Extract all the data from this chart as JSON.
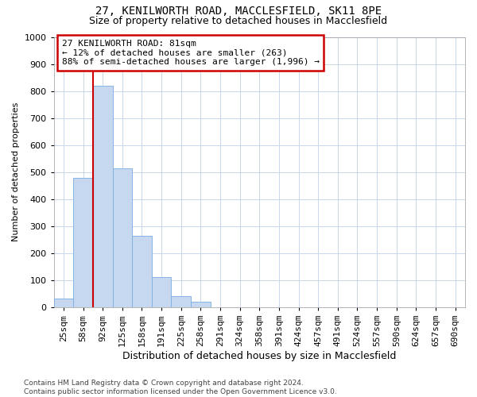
{
  "title1": "27, KENILWORTH ROAD, MACCLESFIELD, SK11 8PE",
  "title2": "Size of property relative to detached houses in Macclesfield",
  "xlabel": "Distribution of detached houses by size in Macclesfield",
  "ylabel": "Number of detached properties",
  "footnote": "Contains HM Land Registry data © Crown copyright and database right 2024.\nContains public sector information licensed under the Open Government Licence v3.0.",
  "bin_labels": [
    "25sqm",
    "58sqm",
    "92sqm",
    "125sqm",
    "158sqm",
    "191sqm",
    "225sqm",
    "258sqm",
    "291sqm",
    "324sqm",
    "358sqm",
    "391sqm",
    "424sqm",
    "457sqm",
    "491sqm",
    "524sqm",
    "557sqm",
    "590sqm",
    "624sqm",
    "657sqm",
    "690sqm"
  ],
  "bar_heights": [
    33,
    480,
    820,
    515,
    265,
    110,
    40,
    20,
    0,
    0,
    0,
    0,
    0,
    0,
    0,
    0,
    0,
    0,
    0,
    0,
    0
  ],
  "bar_color": "#c5d8f0",
  "bar_edge_color": "#7aace0",
  "vline_color": "#cc0000",
  "annotation_text": "27 KENILWORTH ROAD: 81sqm\n← 12% of detached houses are smaller (263)\n88% of semi-detached houses are larger (1,996) →",
  "annotation_box_color": "white",
  "annotation_box_edge": "#cc0000",
  "ylim": [
    0,
    1000
  ],
  "yticks": [
    0,
    100,
    200,
    300,
    400,
    500,
    600,
    700,
    800,
    900,
    1000
  ],
  "grid_color": "#c8d8ec",
  "background_color": "#ffffff",
  "title1_fontsize": 10,
  "title2_fontsize": 9,
  "xlabel_fontsize": 9,
  "ylabel_fontsize": 8,
  "tick_fontsize": 8,
  "annot_fontsize": 8,
  "footnote_fontsize": 6.5
}
